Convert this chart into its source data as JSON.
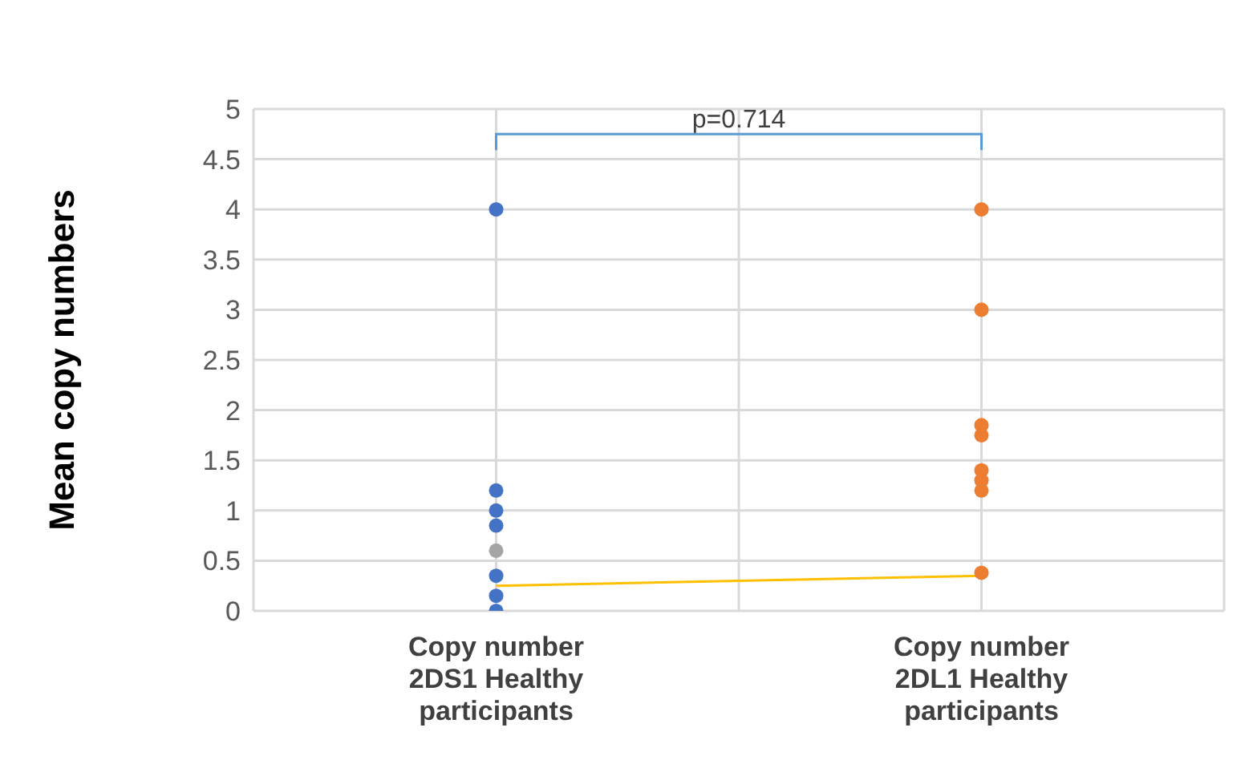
{
  "chart_data": {
    "type": "scatter",
    "ylabel": "Mean copy numbers",
    "categories": [
      "Copy number 2DS1 Healthy participants",
      "Copy number 2DL1 Healthy participants"
    ],
    "ylim": [
      0,
      5
    ],
    "yticks": [
      0,
      0.5,
      1,
      1.5,
      2,
      2.5,
      3,
      3.5,
      4,
      4.5,
      5
    ],
    "grid": true,
    "marker": "circle",
    "annotations": [
      "p=0.714"
    ],
    "series": [
      {
        "color": "#4472c4",
        "x": [
          "Copy number 2DS1 Healthy participants",
          "Copy number 2DS1 Healthy participants",
          "Copy number 2DS1 Healthy participants",
          "Copy number 2DS1 Healthy participants",
          "Copy number 2DS1 Healthy participants",
          "Copy number 2DS1 Healthy participants",
          "Copy number 2DS1 Healthy participants"
        ],
        "values": [
          4,
          1.2,
          1,
          0.85,
          0.35,
          0.15,
          0
        ]
      },
      {
        "color": "#a5a5a5",
        "x": [
          "Copy number 2DS1 Healthy participants"
        ],
        "values": [
          0.6
        ]
      },
      {
        "color": "#ed7d31",
        "x": [
          "Copy number 2DL1 Healthy participants",
          "Copy number 2DL1 Healthy participants",
          "Copy number 2DL1 Healthy participants",
          "Copy number 2DL1 Healthy participants",
          "Copy number 2DL1 Healthy participants",
          "Copy number 2DL1 Healthy participants",
          "Copy number 2DL1 Healthy participants",
          "Copy number 2DL1 Healthy participants"
        ],
        "values": [
          4,
          3,
          1.85,
          1.75,
          1.4,
          1.3,
          1.2,
          0.38
        ]
      },
      {
        "type": "line",
        "color": "#ffc000",
        "marker": "none",
        "values": [
          0.25,
          0.35
        ]
      }
    ]
  }
}
